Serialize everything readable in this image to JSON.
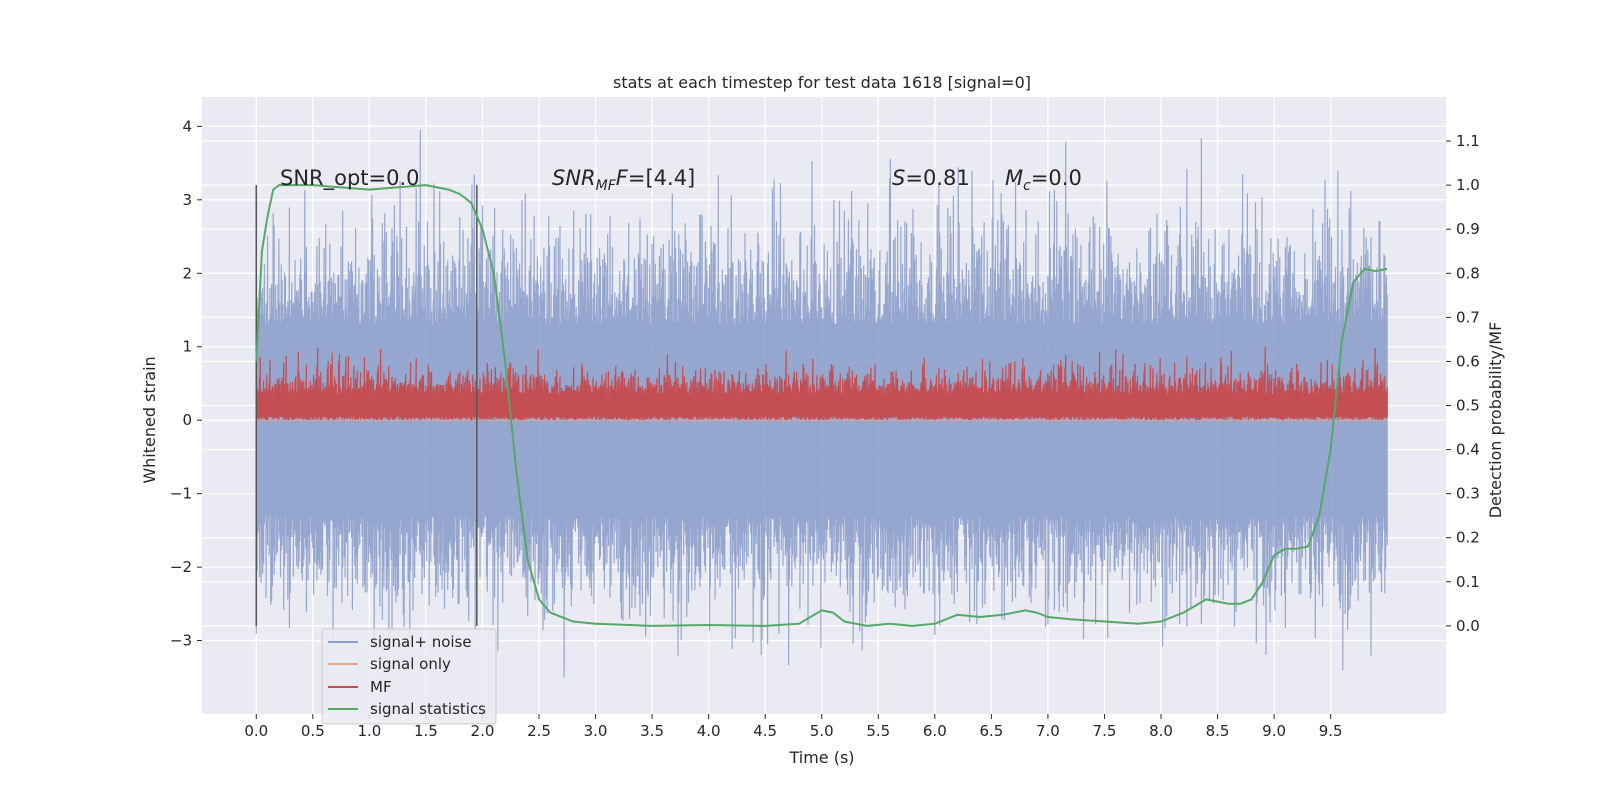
{
  "chart_data": {
    "type": "line",
    "title": "stats at each timestep for test data 1618 [signal=0]",
    "xlabel": "Time (s)",
    "ylabel_left": "Whitened strain",
    "ylabel_right": "Detection probability/MF",
    "xlim": [
      -0.48,
      10.52
    ],
    "ylim_left": [
      -4.0,
      4.4
    ],
    "ylim_right": [
      -0.2,
      1.2
    ],
    "x_ticks": [
      "0.0",
      "0.5",
      "1.0",
      "1.5",
      "2.0",
      "2.5",
      "3.0",
      "3.5",
      "4.0",
      "4.5",
      "5.0",
      "5.5",
      "6.0",
      "6.5",
      "7.0",
      "7.5",
      "8.0",
      "8.5",
      "9.0",
      "9.5"
    ],
    "y_ticks_left": [
      "−3",
      "−2",
      "−1",
      "0",
      "1",
      "2",
      "3",
      "4"
    ],
    "y_ticks_right": [
      "0.0",
      "0.1",
      "0.2",
      "0.3",
      "0.4",
      "0.5",
      "0.6",
      "0.7",
      "0.8",
      "0.9",
      "1.0",
      "1.1"
    ],
    "grid": true,
    "legend_position": "lower-left",
    "annotations": {
      "snr_opt": "SNR_opt=0.0",
      "snr_mf_label": "SNR",
      "snr_mf_sub": "MF",
      "snr_mf_value": "=[4.4]",
      "s_label": "S",
      "s_value": "=0.81",
      "mc_label": "M",
      "mc_sub": "c",
      "mc_value": "=0.0"
    },
    "vlines": [
      0.0,
      1.95
    ],
    "series": [
      {
        "name": "signal+ noise",
        "color": "#8da0cb",
        "kind": "noise",
        "x_range": [
          0.0,
          10.0
        ],
        "approx_range": [
          -3.5,
          4.05
        ]
      },
      {
        "name": "signal only",
        "color": "#e8a38a",
        "kind": "flat",
        "value": 0.0
      },
      {
        "name": "MF",
        "color": "#c44e52",
        "kind": "noise",
        "x_range": [
          0.0,
          10.0
        ],
        "approx_range": [
          0.0,
          1.0
        ]
      },
      {
        "name": "signal statistics",
        "color": "#55a868",
        "kind": "line",
        "x": [
          0.0,
          0.05,
          0.1,
          0.15,
          0.2,
          0.3,
          0.5,
          1.0,
          1.5,
          1.7,
          1.8,
          1.9,
          2.0,
          2.1,
          2.2,
          2.3,
          2.4,
          2.5,
          2.6,
          2.8,
          3.0,
          3.5,
          4.0,
          4.5,
          4.8,
          5.0,
          5.1,
          5.2,
          5.4,
          5.6,
          5.8,
          6.0,
          6.2,
          6.4,
          6.6,
          6.8,
          6.9,
          7.0,
          7.2,
          7.5,
          7.8,
          8.0,
          8.2,
          8.4,
          8.5,
          8.6,
          8.7,
          8.8,
          8.9,
          9.0,
          9.1,
          9.2,
          9.3,
          9.4,
          9.5,
          9.6,
          9.7,
          9.8,
          9.9,
          10.0
        ],
        "y": [
          0.6,
          0.85,
          0.93,
          0.99,
          1.0,
          1.0,
          1.0,
          0.99,
          1.0,
          0.99,
          0.98,
          0.96,
          0.9,
          0.8,
          0.6,
          0.35,
          0.15,
          0.06,
          0.03,
          0.01,
          0.005,
          0.0,
          0.002,
          0.0,
          0.005,
          0.035,
          0.03,
          0.01,
          0.0,
          0.005,
          0.0,
          0.005,
          0.025,
          0.02,
          0.025,
          0.035,
          0.03,
          0.02,
          0.015,
          0.01,
          0.005,
          0.01,
          0.03,
          0.06,
          0.055,
          0.05,
          0.05,
          0.06,
          0.1,
          0.16,
          0.175,
          0.175,
          0.18,
          0.25,
          0.4,
          0.65,
          0.78,
          0.81,
          0.805,
          0.81
        ]
      }
    ]
  }
}
